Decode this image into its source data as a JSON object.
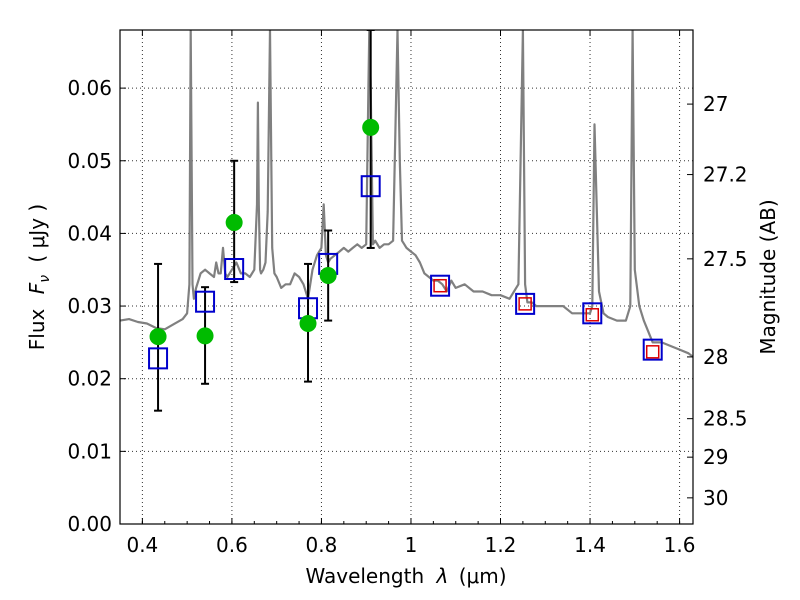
{
  "chart_data": {
    "type": "scatter",
    "xlabel_text": "Wavelength",
    "xlabel_symbol": "λ",
    "xlabel_unit": "(μm)",
    "ylabel_left": "Flux",
    "ylabel_symbol": "F",
    "ylabel_sub": "ν",
    "ylabel_unit": "( μJy )",
    "ylabel_right": "Magnitude (AB)",
    "xlim": [
      0.35,
      1.63
    ],
    "ylim": [
      0.0,
      0.068
    ],
    "xticks": [
      0.4,
      0.6,
      0.8,
      1.0,
      1.2,
      1.4,
      1.6
    ],
    "xtick_labels": [
      "0.4",
      "0.6",
      "0.8",
      "1",
      "1.2",
      "1.4",
      "1.6"
    ],
    "yticks": [
      0.0,
      0.01,
      0.02,
      0.03,
      0.04,
      0.05,
      0.06
    ],
    "ytick_labels": [
      "0.00",
      "0.01",
      "0.02",
      "0.03",
      "0.04",
      "0.05",
      "0.06"
    ],
    "right_ticks": [
      {
        "label": "27",
        "flux": 0.0578
      },
      {
        "label": "27.2",
        "flux": 0.0481
      },
      {
        "label": "27.5",
        "flux": 0.0365
      },
      {
        "label": "28",
        "flux": 0.023
      },
      {
        "label": "28.5",
        "flux": 0.0145
      },
      {
        "label": "29",
        "flux": 0.0092
      },
      {
        "label": "30",
        "flux": 0.0036
      }
    ],
    "grid": true,
    "colors": {
      "model": "#808080",
      "observed": "#00bb00",
      "model_photometry": "#0000cc",
      "nir_photometry": "#dd0000",
      "errorbar": "#000000"
    },
    "series": [
      {
        "name": "model_spectrum",
        "kind": "line",
        "x": [
          0.35,
          0.37,
          0.39,
          0.41,
          0.43,
          0.45,
          0.47,
          0.49,
          0.5,
          0.505,
          0.508,
          0.512,
          0.515,
          0.52,
          0.53,
          0.54,
          0.55,
          0.56,
          0.565,
          0.57,
          0.575,
          0.58,
          0.585,
          0.59,
          0.6,
          0.61,
          0.62,
          0.63,
          0.64,
          0.65,
          0.656,
          0.658,
          0.66,
          0.663,
          0.665,
          0.67,
          0.675,
          0.68,
          0.685,
          0.688,
          0.69,
          0.695,
          0.7,
          0.71,
          0.72,
          0.73,
          0.74,
          0.75,
          0.76,
          0.77,
          0.78,
          0.79,
          0.8,
          0.805,
          0.81,
          0.815,
          0.82,
          0.83,
          0.84,
          0.85,
          0.86,
          0.87,
          0.88,
          0.89,
          0.9,
          0.905,
          0.907,
          0.91,
          0.915,
          0.92,
          0.93,
          0.94,
          0.95,
          0.96,
          0.97,
          0.975,
          0.98,
          0.985,
          0.99,
          1.0,
          1.01,
          1.02,
          1.03,
          1.04,
          1.05,
          1.06,
          1.07,
          1.08,
          1.09,
          1.1,
          1.12,
          1.14,
          1.16,
          1.18,
          1.2,
          1.22,
          1.24,
          1.25,
          1.255,
          1.26,
          1.27,
          1.28,
          1.3,
          1.32,
          1.34,
          1.36,
          1.38,
          1.4,
          1.405,
          1.41,
          1.42,
          1.43,
          1.44,
          1.46,
          1.48,
          1.49,
          1.495,
          1.5,
          1.51,
          1.52,
          1.54,
          1.56,
          1.58,
          1.6,
          1.62,
          1.63
        ],
        "y": [
          0.028,
          0.0282,
          0.0278,
          0.0276,
          0.027,
          0.0268,
          0.0275,
          0.0282,
          0.029,
          0.033,
          0.068,
          0.033,
          0.031,
          0.0325,
          0.0345,
          0.035,
          0.0345,
          0.034,
          0.036,
          0.0345,
          0.0345,
          0.038,
          0.0345,
          0.034,
          0.035,
          0.036,
          0.0345,
          0.0345,
          0.034,
          0.035,
          0.044,
          0.058,
          0.044,
          0.035,
          0.0345,
          0.035,
          0.036,
          0.043,
          0.068,
          0.05,
          0.038,
          0.0345,
          0.034,
          0.0325,
          0.033,
          0.033,
          0.0345,
          0.034,
          0.033,
          0.031,
          0.035,
          0.037,
          0.038,
          0.044,
          0.037,
          0.036,
          0.0365,
          0.037,
          0.0375,
          0.038,
          0.0375,
          0.038,
          0.0385,
          0.038,
          0.0385,
          0.06,
          0.068,
          0.06,
          0.0385,
          0.039,
          0.038,
          0.0385,
          0.0385,
          0.039,
          0.068,
          0.05,
          0.039,
          0.0385,
          0.038,
          0.0375,
          0.037,
          0.036,
          0.0345,
          0.034,
          0.0335,
          0.0335,
          0.033,
          0.032,
          0.0335,
          0.0325,
          0.033,
          0.032,
          0.032,
          0.0315,
          0.0315,
          0.031,
          0.033,
          0.068,
          0.033,
          0.0305,
          0.0305,
          0.03,
          0.03,
          0.03,
          0.03,
          0.029,
          0.029,
          0.029,
          0.03,
          0.055,
          0.032,
          0.029,
          0.0285,
          0.028,
          0.028,
          0.03,
          0.068,
          0.035,
          0.03,
          0.028,
          0.025,
          0.025,
          0.0245,
          0.024,
          0.0235,
          0.023
        ]
      },
      {
        "name": "observed_photometry",
        "kind": "scatter",
        "marker": "circle",
        "x": [
          0.435,
          0.54,
          0.605,
          0.77,
          0.815,
          0.91
        ],
        "y": [
          0.0258,
          0.0259,
          0.0415,
          0.0276,
          0.0342,
          0.0546
        ],
        "yerr_low": [
          0.0156,
          0.0193,
          0.0333,
          0.0196,
          0.028,
          0.038
        ],
        "yerr_high": [
          0.0358,
          0.0326,
          0.05,
          0.0358,
          0.0404,
          0.068
        ]
      },
      {
        "name": "model_photometry",
        "kind": "scatter",
        "marker": "square-open",
        "x": [
          0.435,
          0.54,
          0.605,
          0.77,
          0.815,
          0.91,
          1.065,
          1.255,
          1.405,
          1.54
        ],
        "y": [
          0.0228,
          0.0306,
          0.0351,
          0.0297,
          0.0358,
          0.0465,
          0.0328,
          0.0303,
          0.029,
          0.024
        ]
      },
      {
        "name": "nir_photometry",
        "kind": "scatter",
        "marker": "square-open-small",
        "x": [
          1.065,
          1.255,
          1.405,
          1.54
        ],
        "y": [
          0.0328,
          0.0303,
          0.0288,
          0.0237
        ]
      }
    ]
  }
}
